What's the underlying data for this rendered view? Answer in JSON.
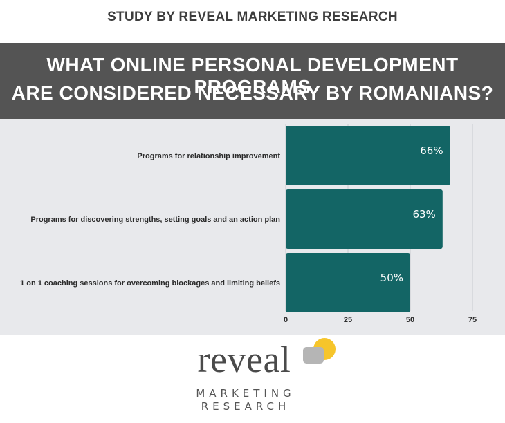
{
  "header": {
    "study_label": "STUDY BY REVEAL MARKETING RESEARCH",
    "title_line1": "WHAT ONLINE PERSONAL DEVELOPMENT PROGRAMS",
    "title_line2": "ARE CONSIDERED NECESSARY BY ROMANIANS?"
  },
  "colors": {
    "bar": "#136565",
    "banner": "#545454",
    "chart_bg": "#e8e9ec",
    "logo_yellow": "#f6c52b",
    "logo_gray": "#b5b5b5"
  },
  "chart_data": {
    "type": "bar",
    "orientation": "horizontal",
    "categories": [
      "Programs for relationship improvement",
      "Programs for discovering strengths, setting goals and an action plan",
      "1 on 1 coaching sessions for overcoming blockages and limiting beliefs"
    ],
    "values": [
      66,
      63,
      50
    ],
    "data_labels": [
      "66%",
      "63%",
      "50%"
    ],
    "xlim": [
      0,
      75
    ],
    "x_ticks": [
      "0",
      "25",
      "50",
      "75"
    ],
    "grid": true
  },
  "logo": {
    "word": "reveal",
    "line1": "MARKETING",
    "line2": "RESEARCH"
  }
}
